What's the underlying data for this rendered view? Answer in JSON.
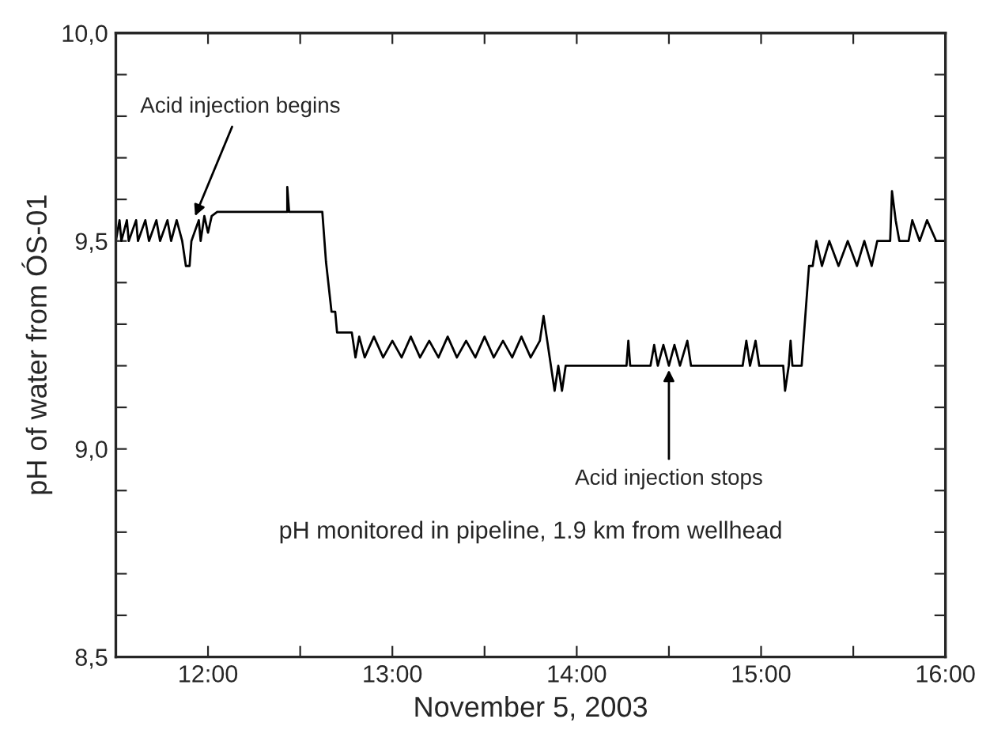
{
  "chart_data": {
    "type": "line",
    "xlabel": "November 5, 2003",
    "ylabel": "pH of water from ÓS-01",
    "xlim": [
      11.5,
      16.0
    ],
    "xticks": [
      {
        "value": 12,
        "label": "12:00"
      },
      {
        "value": 12.5,
        "label": null
      },
      {
        "value": 13,
        "label": "13:00"
      },
      {
        "value": 13.5,
        "label": null
      },
      {
        "value": 14,
        "label": "14:00"
      },
      {
        "value": 14.5,
        "label": null
      },
      {
        "value": 15,
        "label": "15:00"
      },
      {
        "value": 15.5,
        "label": null
      },
      {
        "value": 16,
        "label": "16:00"
      }
    ],
    "ylim": [
      8.5,
      10.0
    ],
    "yticks": [
      {
        "value": 8.5,
        "label": "8,5"
      },
      {
        "value": 8.6,
        "label": null
      },
      {
        "value": 8.7,
        "label": null
      },
      {
        "value": 8.8,
        "label": null
      },
      {
        "value": 8.9,
        "label": null
      },
      {
        "value": 9.0,
        "label": "9,0"
      },
      {
        "value": 9.1,
        "label": null
      },
      {
        "value": 9.2,
        "label": null
      },
      {
        "value": 9.3,
        "label": null
      },
      {
        "value": 9.4,
        "label": null
      },
      {
        "value": 9.5,
        "label": "9,5"
      },
      {
        "value": 9.6,
        "label": null
      },
      {
        "value": 9.7,
        "label": null
      },
      {
        "value": 9.8,
        "label": null
      },
      {
        "value": 9.9,
        "label": null
      },
      {
        "value": 10.0,
        "label": "10,0"
      }
    ],
    "grid": false,
    "legend": false,
    "marker": "none",
    "line_style": "solid",
    "series": [
      {
        "color": "#000000",
        "x": [
          11.5,
          11.52,
          11.53,
          11.56,
          11.57,
          11.61,
          11.62,
          11.66,
          11.68,
          11.72,
          11.74,
          11.78,
          11.8,
          11.83,
          11.86,
          11.88,
          11.9,
          11.91,
          11.95,
          11.96,
          11.98,
          12.0,
          12.02,
          12.05,
          12.43,
          12.43,
          12.44,
          12.62,
          12.64,
          12.67,
          12.69,
          12.7,
          12.78,
          12.8,
          12.82,
          12.85,
          12.9,
          12.95,
          13.0,
          13.05,
          13.1,
          13.15,
          13.2,
          13.25,
          13.3,
          13.35,
          13.4,
          13.45,
          13.5,
          13.55,
          13.6,
          13.65,
          13.7,
          13.75,
          13.8,
          13.82,
          13.84,
          13.86,
          13.88,
          13.9,
          13.92,
          13.94,
          14.27,
          14.28,
          14.29,
          14.4,
          14.42,
          14.44,
          14.47,
          14.5,
          14.53,
          14.56,
          14.6,
          14.62,
          14.9,
          14.92,
          14.94,
          14.97,
          14.99,
          15.12,
          15.13,
          15.15,
          15.16,
          15.17,
          15.22,
          15.26,
          15.28,
          15.3,
          15.33,
          15.37,
          15.42,
          15.47,
          15.52,
          15.56,
          15.6,
          15.63,
          15.7,
          15.71,
          15.73,
          15.75,
          15.8,
          15.82,
          15.86,
          15.9,
          15.95,
          16.0
        ],
        "values": [
          9.5,
          9.55,
          9.5,
          9.55,
          9.5,
          9.55,
          9.5,
          9.55,
          9.5,
          9.55,
          9.5,
          9.55,
          9.5,
          9.55,
          9.5,
          9.44,
          9.44,
          9.5,
          9.55,
          9.5,
          9.56,
          9.52,
          9.56,
          9.57,
          9.57,
          9.63,
          9.57,
          9.57,
          9.45,
          9.33,
          9.33,
          9.28,
          9.28,
          9.22,
          9.27,
          9.22,
          9.27,
          9.22,
          9.26,
          9.22,
          9.27,
          9.22,
          9.26,
          9.22,
          9.27,
          9.22,
          9.26,
          9.22,
          9.27,
          9.22,
          9.26,
          9.22,
          9.27,
          9.22,
          9.26,
          9.32,
          9.26,
          9.2,
          9.14,
          9.2,
          9.14,
          9.2,
          9.2,
          9.26,
          9.2,
          9.2,
          9.25,
          9.2,
          9.25,
          9.2,
          9.25,
          9.2,
          9.26,
          9.2,
          9.2,
          9.26,
          9.2,
          9.26,
          9.2,
          9.2,
          9.14,
          9.2,
          9.26,
          9.2,
          9.2,
          9.44,
          9.44,
          9.5,
          9.44,
          9.5,
          9.44,
          9.5,
          9.44,
          9.5,
          9.44,
          9.5,
          9.5,
          9.62,
          9.55,
          9.5,
          9.5,
          9.55,
          9.5,
          9.55,
          9.5,
          9.5
        ]
      }
    ],
    "annotations": [
      {
        "text": "Acid injection begins",
        "x": 11.93,
        "y": 9.56
      },
      {
        "text": "Acid injection stops",
        "x": 14.5,
        "y": 9.19
      },
      "pH monitored in pipeline, 1.9 km from wellhead"
    ]
  }
}
